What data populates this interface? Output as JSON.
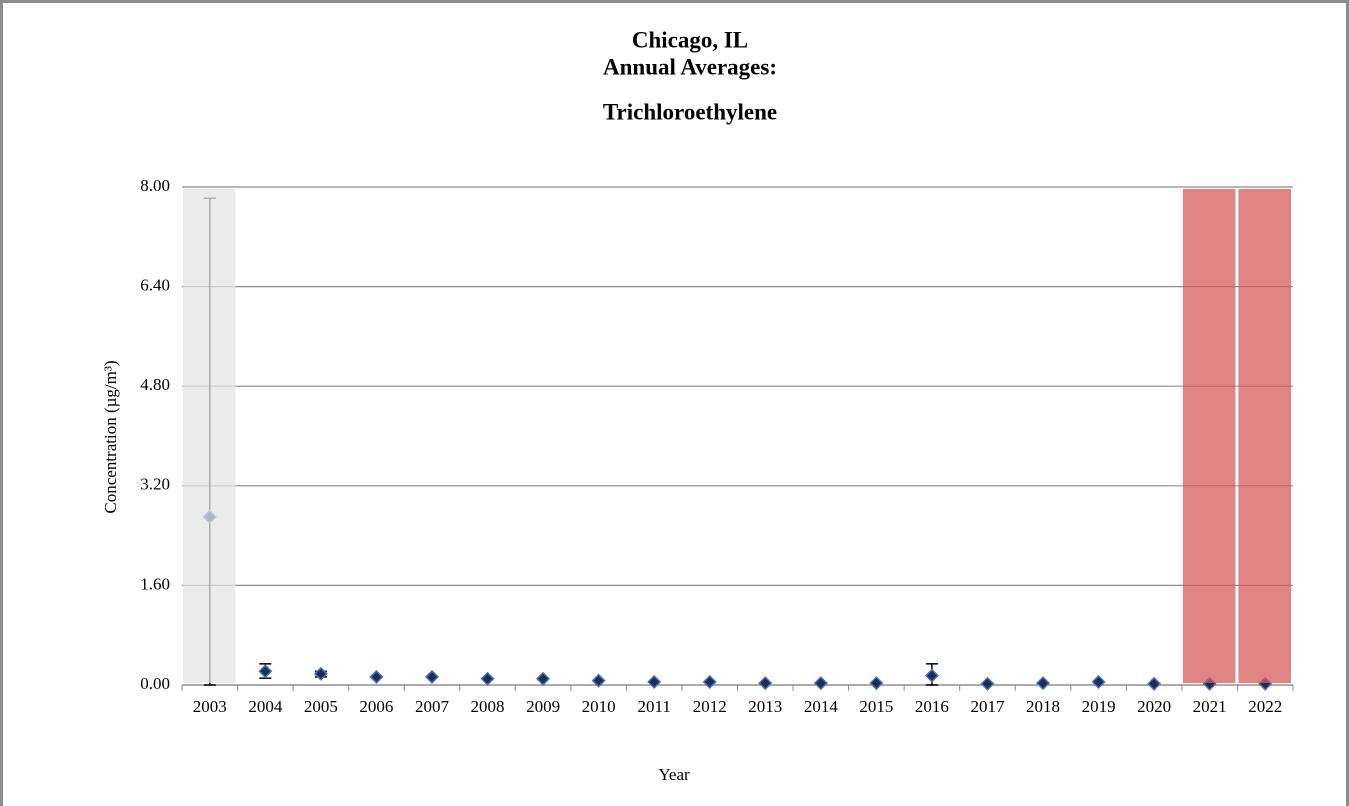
{
  "chart_data": {
    "type": "scatter",
    "title": [
      "Chicago, IL",
      "Annual Averages:",
      "Trichloroethylene"
    ],
    "x_label": "Year",
    "y_label": "Concentration (µg/m³)",
    "categories": [
      "2003",
      "2004",
      "2005",
      "2006",
      "2007",
      "2008",
      "2009",
      "2010",
      "2011",
      "2012",
      "2013",
      "2014",
      "2015",
      "2016",
      "2017",
      "2018",
      "2019",
      "2020",
      "2021",
      "2022"
    ],
    "series": [
      {
        "color": "#1f2d50",
        "edge_color": "#4a72c4",
        "values": [
          2.7,
          0.22,
          0.18,
          0.13,
          0.13,
          0.1,
          0.1,
          0.07,
          0.05,
          0.05,
          0.03,
          0.03,
          0.03,
          0.15,
          0.02,
          0.03,
          0.05,
          0.02,
          0.02,
          0.02
        ],
        "lower": [
          0.0,
          0.11,
          0.13,
          null,
          null,
          null,
          null,
          null,
          null,
          null,
          null,
          null,
          null,
          0.0,
          null,
          0.03,
          null,
          null,
          null,
          null
        ],
        "upper": [
          7.82,
          0.34,
          0.22,
          null,
          null,
          null,
          null,
          null,
          null,
          null,
          null,
          null,
          null,
          0.34,
          null,
          0.03,
          null,
          null,
          null,
          null
        ]
      }
    ],
    "ylim": [
      0,
      8
    ],
    "yticks": [
      {
        "value": 0,
        "label": "0.00"
      },
      {
        "value": 1.6,
        "label": "1.60"
      },
      {
        "value": 3.2,
        "label": "3.20"
      },
      {
        "value": 4.8,
        "label": "4.80"
      },
      {
        "value": 6.4,
        "label": "6.40"
      },
      {
        "value": 8,
        "label": "8.00"
      }
    ],
    "grid": true,
    "shaded_categories": [
      {
        "category": "2003",
        "color": "#e4e4e4"
      },
      {
        "category": "2021",
        "color": "#d65b5b"
      },
      {
        "category": "2022",
        "color": "#d65b5b"
      }
    ]
  }
}
